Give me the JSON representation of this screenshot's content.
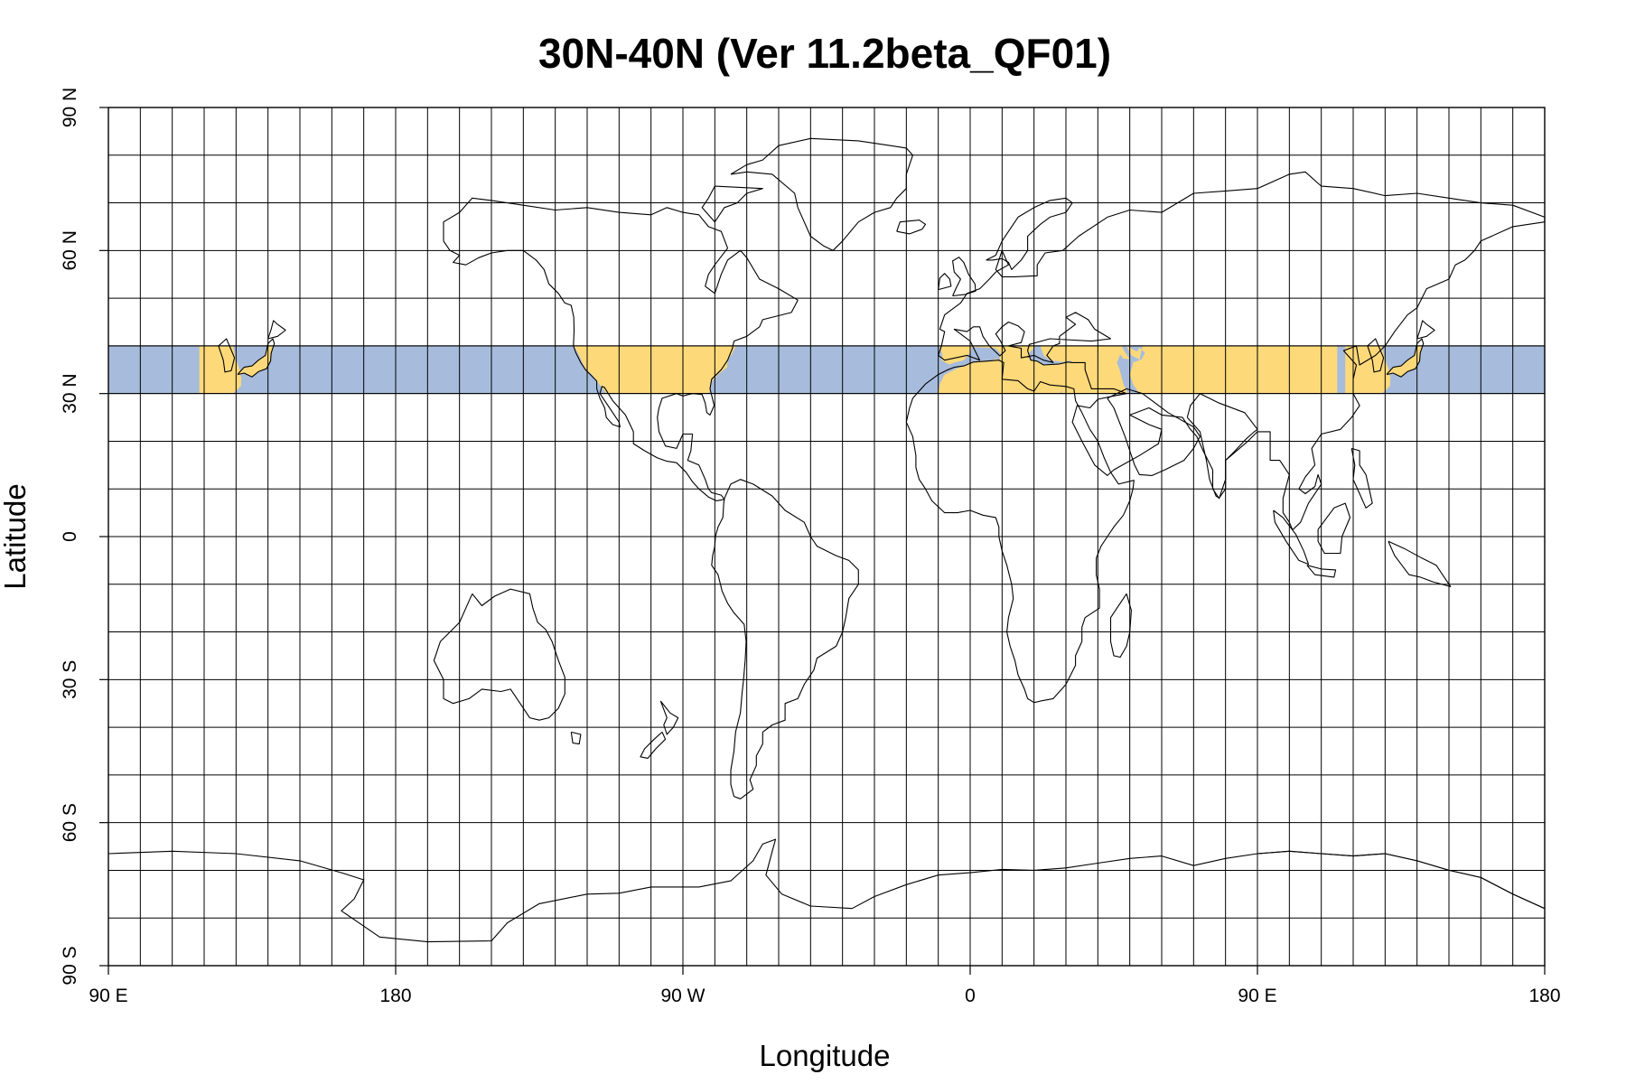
{
  "chart_data": {
    "type": "map",
    "title": "30N-40N (Ver 11.2beta_QF01)",
    "xlabel": "Longitude",
    "ylabel": "Latitude",
    "projection": "equirectangular",
    "lon_range": [
      90,
      540
    ],
    "lat_range": [
      -90,
      90
    ],
    "grid": true,
    "grid_lon_step": 10,
    "grid_lat_step": 10,
    "x_ticks": [
      {
        "value": 90,
        "label": "90 E"
      },
      {
        "value": 180,
        "label": "180"
      },
      {
        "value": 270,
        "label": "90 W"
      },
      {
        "value": 360,
        "label": "0"
      },
      {
        "value": 450,
        "label": "90 E"
      },
      {
        "value": 540,
        "label": "180"
      }
    ],
    "y_ticks": [
      {
        "value": 90,
        "label": "90 N"
      },
      {
        "value": 60,
        "label": "60 N"
      },
      {
        "value": 30,
        "label": "30 N"
      },
      {
        "value": 0,
        "label": "0"
      },
      {
        "value": -30,
        "label": "30 S"
      },
      {
        "value": -60,
        "label": "60 S"
      },
      {
        "value": -90,
        "label": "90 S"
      }
    ],
    "highlight_band": {
      "lat_min": 30,
      "lat_max": 40
    },
    "colors": {
      "ocean_band": "#A7BCDC",
      "land_band": "#FDD97A",
      "coastline": "#000000",
      "grid": "#000000"
    }
  }
}
